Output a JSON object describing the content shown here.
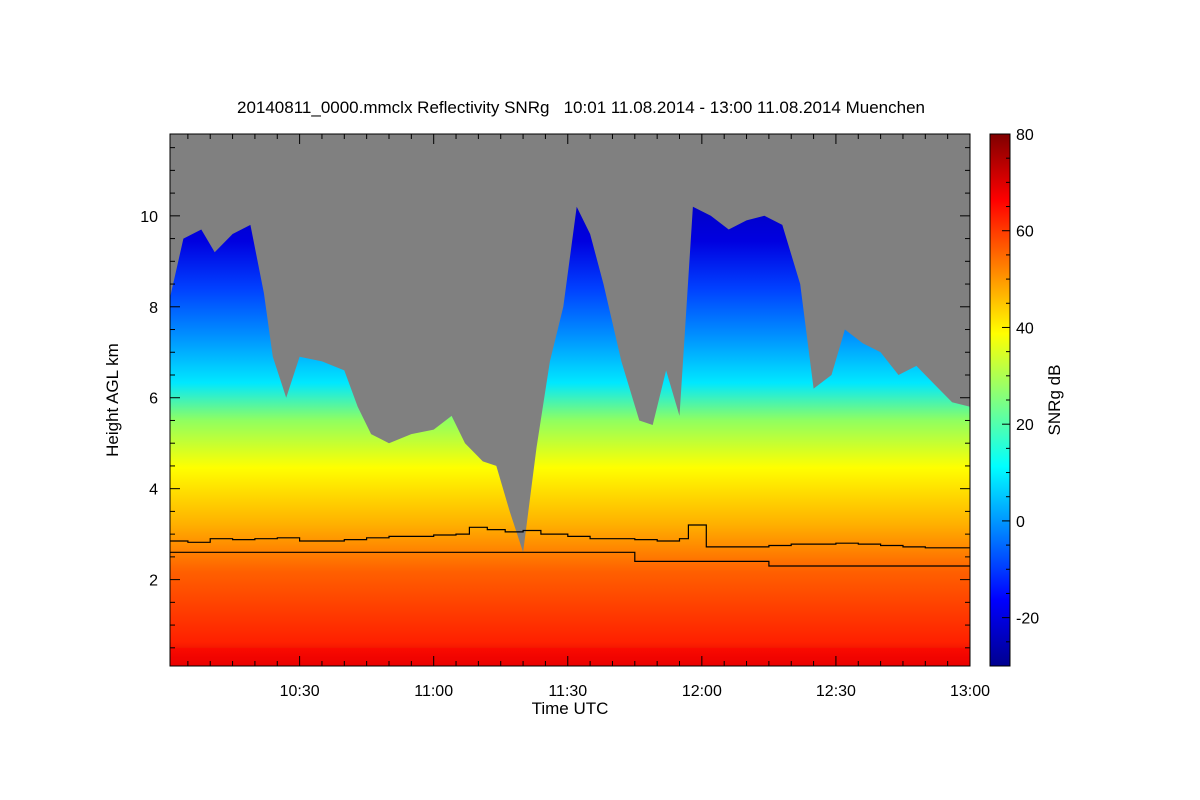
{
  "chart_data": {
    "type": "heatmap",
    "title": "20140811_0000.mmclx Reflectivity SNRg   10:01 11.08.2014 - 13:00 11.08.2014 Muenchen",
    "xlabel": "Time UTC",
    "ylabel": "Height AGL km",
    "colorbar_label": "SNRg dB",
    "x_range_minutes": [
      601,
      780
    ],
    "y_range_km": [
      0.1,
      11.8
    ],
    "x_ticks": [
      {
        "value": 630,
        "label": "10:30"
      },
      {
        "value": 660,
        "label": "11:00"
      },
      {
        "value": 690,
        "label": "11:30"
      },
      {
        "value": 720,
        "label": "12:00"
      },
      {
        "value": 750,
        "label": "12:30"
      },
      {
        "value": 780,
        "label": "13:00"
      }
    ],
    "y_ticks": [
      {
        "value": 2,
        "label": "2"
      },
      {
        "value": 4,
        "label": "4"
      },
      {
        "value": 6,
        "label": "6"
      },
      {
        "value": 8,
        "label": "8"
      },
      {
        "value": 10,
        "label": "10"
      }
    ],
    "colorbar_range": [
      -30,
      80
    ],
    "colorbar_ticks": [
      {
        "value": -20,
        "label": "-20"
      },
      {
        "value": 0,
        "label": "0"
      },
      {
        "value": 20,
        "label": "20"
      },
      {
        "value": 40,
        "label": "40"
      },
      {
        "value": 60,
        "label": "60"
      },
      {
        "value": 80,
        "label": "80"
      }
    ],
    "colormap": [
      "#00008f",
      "#0000ff",
      "#0080ff",
      "#00ffff",
      "#80ff80",
      "#ffff00",
      "#ff8000",
      "#ff0000",
      "#800000"
    ],
    "no_data_color": "#808080",
    "echo_top_km": [
      {
        "t": 601,
        "h": 8.2
      },
      {
        "t": 604,
        "h": 9.5
      },
      {
        "t": 608,
        "h": 9.7
      },
      {
        "t": 611,
        "h": 9.2
      },
      {
        "t": 615,
        "h": 9.6
      },
      {
        "t": 619,
        "h": 9.8
      },
      {
        "t": 622,
        "h": 8.3
      },
      {
        "t": 624,
        "h": 6.9
      },
      {
        "t": 627,
        "h": 6.0
      },
      {
        "t": 630,
        "h": 6.9
      },
      {
        "t": 635,
        "h": 6.8
      },
      {
        "t": 640,
        "h": 6.6
      },
      {
        "t": 643,
        "h": 5.8
      },
      {
        "t": 646,
        "h": 5.2
      },
      {
        "t": 650,
        "h": 5.0
      },
      {
        "t": 655,
        "h": 5.2
      },
      {
        "t": 660,
        "h": 5.3
      },
      {
        "t": 664,
        "h": 5.6
      },
      {
        "t": 667,
        "h": 5.0
      },
      {
        "t": 671,
        "h": 4.6
      },
      {
        "t": 674,
        "h": 4.5
      },
      {
        "t": 677,
        "h": 3.5
      },
      {
        "t": 680,
        "h": 2.6
      },
      {
        "t": 683,
        "h": 4.9
      },
      {
        "t": 686,
        "h": 6.8
      },
      {
        "t": 689,
        "h": 8.0
      },
      {
        "t": 692,
        "h": 10.2
      },
      {
        "t": 695,
        "h": 9.6
      },
      {
        "t": 698,
        "h": 8.5
      },
      {
        "t": 702,
        "h": 6.8
      },
      {
        "t": 706,
        "h": 5.5
      },
      {
        "t": 709,
        "h": 5.4
      },
      {
        "t": 712,
        "h": 6.6
      },
      {
        "t": 715,
        "h": 5.6
      },
      {
        "t": 718,
        "h": 10.2
      },
      {
        "t": 722,
        "h": 10.0
      },
      {
        "t": 726,
        "h": 9.7
      },
      {
        "t": 730,
        "h": 9.9
      },
      {
        "t": 734,
        "h": 10.0
      },
      {
        "t": 738,
        "h": 9.8
      },
      {
        "t": 742,
        "h": 8.5
      },
      {
        "t": 745,
        "h": 6.2
      },
      {
        "t": 749,
        "h": 6.5
      },
      {
        "t": 752,
        "h": 7.5
      },
      {
        "t": 756,
        "h": 7.2
      },
      {
        "t": 760,
        "h": 7.0
      },
      {
        "t": 764,
        "h": 6.5
      },
      {
        "t": 768,
        "h": 6.7
      },
      {
        "t": 772,
        "h": 6.3
      },
      {
        "t": 776,
        "h": 5.9
      },
      {
        "t": 780,
        "h": 5.8
      }
    ],
    "series": [
      {
        "name": "",
        "color": "#000000",
        "points": [
          {
            "t": 601,
            "h": 2.85
          },
          {
            "t": 605,
            "h": 2.82
          },
          {
            "t": 610,
            "h": 2.9
          },
          {
            "t": 615,
            "h": 2.88
          },
          {
            "t": 620,
            "h": 2.9
          },
          {
            "t": 625,
            "h": 2.92
          },
          {
            "t": 630,
            "h": 2.85
          },
          {
            "t": 636,
            "h": 2.85
          },
          {
            "t": 640,
            "h": 2.88
          },
          {
            "t": 645,
            "h": 2.92
          },
          {
            "t": 650,
            "h": 2.95
          },
          {
            "t": 655,
            "h": 2.95
          },
          {
            "t": 660,
            "h": 2.98
          },
          {
            "t": 665,
            "h": 3.0
          },
          {
            "t": 668,
            "h": 3.15
          },
          {
            "t": 672,
            "h": 3.1
          },
          {
            "t": 676,
            "h": 3.05
          },
          {
            "t": 680,
            "h": 3.08
          },
          {
            "t": 684,
            "h": 3.0
          },
          {
            "t": 690,
            "h": 2.95
          },
          {
            "t": 695,
            "h": 2.9
          },
          {
            "t": 700,
            "h": 2.9
          },
          {
            "t": 705,
            "h": 2.88
          },
          {
            "t": 710,
            "h": 2.85
          },
          {
            "t": 715,
            "h": 2.9
          },
          {
            "t": 717,
            "h": 3.2
          },
          {
            "t": 720,
            "h": 3.2
          },
          {
            "t": 721,
            "h": 2.72
          },
          {
            "t": 725,
            "h": 2.72
          },
          {
            "t": 730,
            "h": 2.72
          },
          {
            "t": 735,
            "h": 2.75
          },
          {
            "t": 740,
            "h": 2.78
          },
          {
            "t": 745,
            "h": 2.78
          },
          {
            "t": 750,
            "h": 2.8
          },
          {
            "t": 755,
            "h": 2.78
          },
          {
            "t": 760,
            "h": 2.75
          },
          {
            "t": 765,
            "h": 2.72
          },
          {
            "t": 770,
            "h": 2.7
          },
          {
            "t": 775,
            "h": 2.7
          },
          {
            "t": 780,
            "h": 2.7
          }
        ]
      },
      {
        "name": "",
        "color": "#000000",
        "points": [
          {
            "t": 601,
            "h": 2.6
          },
          {
            "t": 705,
            "h": 2.6
          },
          {
            "t": 705,
            "h": 2.4
          },
          {
            "t": 735,
            "h": 2.4
          },
          {
            "t": 735,
            "h": 2.3
          },
          {
            "t": 780,
            "h": 2.3
          }
        ]
      }
    ]
  }
}
